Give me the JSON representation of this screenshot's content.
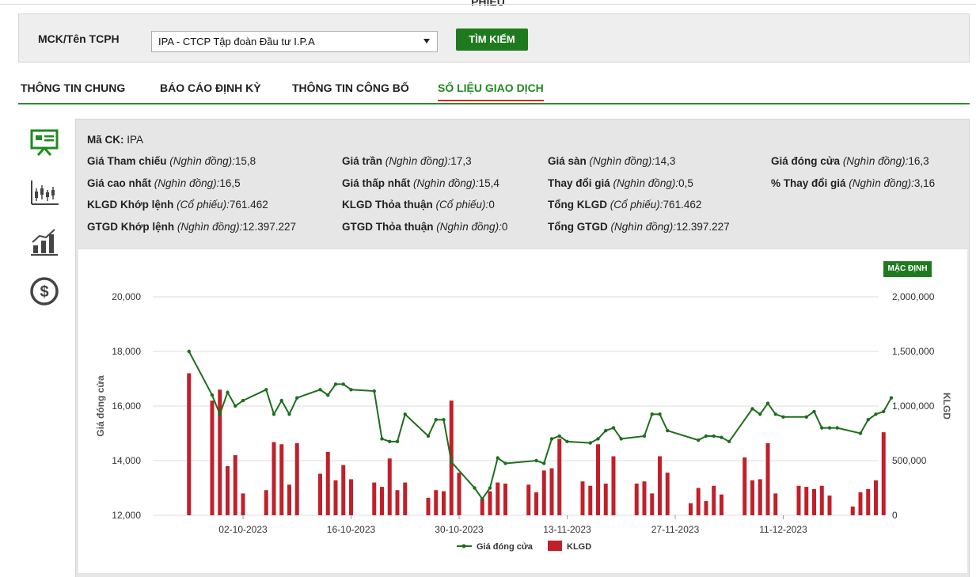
{
  "header": {
    "title_partial": "PHIẾU"
  },
  "search": {
    "label": "MCK/Tên TCPH",
    "selected": "IPA - CTCP Tập đoàn Đầu tư I.P.A",
    "button": "TÌM KIẾM"
  },
  "tabs": [
    {
      "label": "THÔNG TIN CHUNG",
      "active": false
    },
    {
      "label": "BÁO CÁO ĐỊNH KỲ",
      "active": false
    },
    {
      "label": "THÔNG TIN CÔNG BỐ",
      "active": false
    },
    {
      "label": "SỐ LIỆU GIAO DỊCH",
      "active": true
    }
  ],
  "side_icons": [
    "presentation-board-icon",
    "candlestick-chart-icon",
    "bar-growth-chart-icon",
    "dollar-coin-icon"
  ],
  "colors": {
    "brand_green": "#1f7a1f",
    "accent_red": "#d42a2a",
    "bar_red": "#c0202a",
    "line_green": "#1e6e1e"
  },
  "info": {
    "ma_ck": {
      "label": "Mã CK:",
      "value": "IPA"
    },
    "rows": [
      [
        {
          "label": "Giá Tham chiếu",
          "unit": "(Nghìn đồng):",
          "value": "15,8"
        },
        {
          "label": "Giá trần",
          "unit": "(Nghìn đồng):",
          "value": "17,3"
        },
        {
          "label": "Giá sàn",
          "unit": "(Nghìn đồng):",
          "value": "14,3"
        },
        {
          "label": "Giá đóng cửa",
          "unit": "(Nghìn đồng):",
          "value": "16,3"
        }
      ],
      [
        {
          "label": "Giá cao nhất",
          "unit": "(Nghìn đồng):",
          "value": "16,5"
        },
        {
          "label": "Giá thấp nhất",
          "unit": "(Nghìn đồng):",
          "value": "15,4"
        },
        {
          "label": "Thay đổi giá",
          "unit": "(Nghìn đồng):",
          "value": "0,5"
        },
        {
          "label": "% Thay đổi giá",
          "unit": "(Nghìn đồng):",
          "value": "3,16"
        }
      ],
      [
        {
          "label": "KLGD Khớp lệnh",
          "unit": "(Cổ phiếu):",
          "value": "761.462"
        },
        {
          "label": "KLGD Thỏa thuận",
          "unit": "(Cổ phiếu):",
          "value": "0"
        },
        {
          "label": "Tổng KLGD",
          "unit": "(Cổ phiếu):",
          "value": "761.462"
        }
      ],
      [
        {
          "label": "GTGD Khớp lệnh",
          "unit": "(Nghìn đồng):",
          "value": "12.397.227"
        },
        {
          "label": "GTGD Thỏa thuận",
          "unit": "(Nghìn đồng):",
          "value": "0"
        },
        {
          "label": "Tổng GTGD",
          "unit": "(Nghìn đồng):",
          "value": "12.397.227"
        }
      ]
    ]
  },
  "chart": {
    "default_button": "MẶC ĐỊNH",
    "ylabel_left": "Giá đóng cửa",
    "ylabel_right": "KLGD",
    "y_left_ticks": [
      "12,000",
      "14,000",
      "16,000",
      "18,000",
      "20,000"
    ],
    "y_right_ticks": [
      "0",
      "500,000",
      "1,000,000",
      "1,500,000",
      "2,000,000"
    ],
    "x_ticks": [
      "02-10-2023",
      "16-10-2023",
      "30-10-2023",
      "13-11-2023",
      "27-11-2023",
      "11-12-2023"
    ],
    "legend": [
      "Giá đóng cửa",
      "KLGD"
    ]
  },
  "chart_data": {
    "type": "bar+line",
    "x_ticks": [
      "02-10-2023",
      "16-10-2023",
      "30-10-2023",
      "13-11-2023",
      "27-11-2023",
      "11-12-2023"
    ],
    "y_left_range": [
      12000,
      20000
    ],
    "y_right_range": [
      0,
      2000000
    ],
    "series": [
      {
        "name": "Giá đóng cửa",
        "type": "line",
        "axis": "left",
        "points": [
          [
            -7,
            18000
          ],
          [
            -4,
            16400
          ],
          [
            -3,
            15700
          ],
          [
            -2,
            16500
          ],
          [
            -1,
            16000
          ],
          [
            0,
            16200
          ],
          [
            3,
            16600
          ],
          [
            4,
            15700
          ],
          [
            5,
            16200
          ],
          [
            6,
            15700
          ],
          [
            7,
            16300
          ],
          [
            10,
            16600
          ],
          [
            11,
            16400
          ],
          [
            12,
            16800
          ],
          [
            13,
            16800
          ],
          [
            14,
            16600
          ],
          [
            17,
            16550
          ],
          [
            18,
            14800
          ],
          [
            19,
            14700
          ],
          [
            20,
            14700
          ],
          [
            21,
            15700
          ],
          [
            24,
            14900
          ],
          [
            25,
            15500
          ],
          [
            26,
            15500
          ],
          [
            27,
            13950
          ],
          [
            30,
            13000
          ],
          [
            31,
            12600
          ],
          [
            32,
            13000
          ],
          [
            33,
            14100
          ],
          [
            34,
            13900
          ],
          [
            38,
            14000
          ],
          [
            39,
            13900
          ],
          [
            40,
            14800
          ],
          [
            41,
            14900
          ],
          [
            42,
            14700
          ],
          [
            45,
            14650
          ],
          [
            46,
            14800
          ],
          [
            47,
            15100
          ],
          [
            48,
            15200
          ],
          [
            49,
            14800
          ],
          [
            52,
            14900
          ],
          [
            53,
            15700
          ],
          [
            54,
            15700
          ],
          [
            55,
            15100
          ],
          [
            59,
            14750
          ],
          [
            60,
            14900
          ],
          [
            61,
            14900
          ],
          [
            62,
            14850
          ],
          [
            63,
            14700
          ],
          [
            66,
            15900
          ],
          [
            67,
            15700
          ],
          [
            68,
            16100
          ],
          [
            69,
            15700
          ],
          [
            70,
            15600
          ],
          [
            73,
            15600
          ],
          [
            74,
            15800
          ],
          [
            75,
            15200
          ],
          [
            76,
            15200
          ],
          [
            77,
            15200
          ],
          [
            80,
            15000
          ],
          [
            81,
            15500
          ],
          [
            82,
            15700
          ],
          [
            83,
            15800
          ],
          [
            84,
            16300
          ]
        ]
      },
      {
        "name": "KLGD",
        "type": "bar",
        "axis": "right",
        "points": [
          [
            -7,
            1300000
          ],
          [
            -4,
            1050000
          ],
          [
            -3,
            1150000
          ],
          [
            -2,
            450000
          ],
          [
            -1,
            550000
          ],
          [
            0,
            200000
          ],
          [
            3,
            230000
          ],
          [
            4,
            670000
          ],
          [
            5,
            650000
          ],
          [
            6,
            280000
          ],
          [
            7,
            660000
          ],
          [
            10,
            380000
          ],
          [
            11,
            580000
          ],
          [
            12,
            320000
          ],
          [
            13,
            460000
          ],
          [
            14,
            330000
          ],
          [
            17,
            300000
          ],
          [
            18,
            260000
          ],
          [
            19,
            520000
          ],
          [
            20,
            230000
          ],
          [
            21,
            300000
          ],
          [
            24,
            160000
          ],
          [
            25,
            230000
          ],
          [
            26,
            220000
          ],
          [
            27,
            1050000
          ],
          [
            28,
            390000
          ],
          [
            31,
            150000
          ],
          [
            32,
            220000
          ],
          [
            33,
            300000
          ],
          [
            34,
            290000
          ],
          [
            37,
            280000
          ],
          [
            38,
            210000
          ],
          [
            39,
            410000
          ],
          [
            40,
            430000
          ],
          [
            41,
            700000
          ],
          [
            44,
            310000
          ],
          [
            45,
            270000
          ],
          [
            46,
            650000
          ],
          [
            47,
            290000
          ],
          [
            48,
            540000
          ],
          [
            51,
            290000
          ],
          [
            52,
            310000
          ],
          [
            53,
            200000
          ],
          [
            54,
            540000
          ],
          [
            55,
            390000
          ],
          [
            58,
            110000
          ],
          [
            59,
            250000
          ],
          [
            60,
            130000
          ],
          [
            61,
            270000
          ],
          [
            62,
            190000
          ],
          [
            65,
            530000
          ],
          [
            66,
            320000
          ],
          [
            67,
            330000
          ],
          [
            68,
            660000
          ],
          [
            69,
            200000
          ],
          [
            72,
            270000
          ],
          [
            73,
            260000
          ],
          [
            74,
            240000
          ],
          [
            75,
            270000
          ],
          [
            76,
            180000
          ],
          [
            79,
            80000
          ],
          [
            80,
            210000
          ],
          [
            81,
            240000
          ],
          [
            82,
            320000
          ],
          [
            83,
            760000
          ]
        ]
      }
    ]
  }
}
